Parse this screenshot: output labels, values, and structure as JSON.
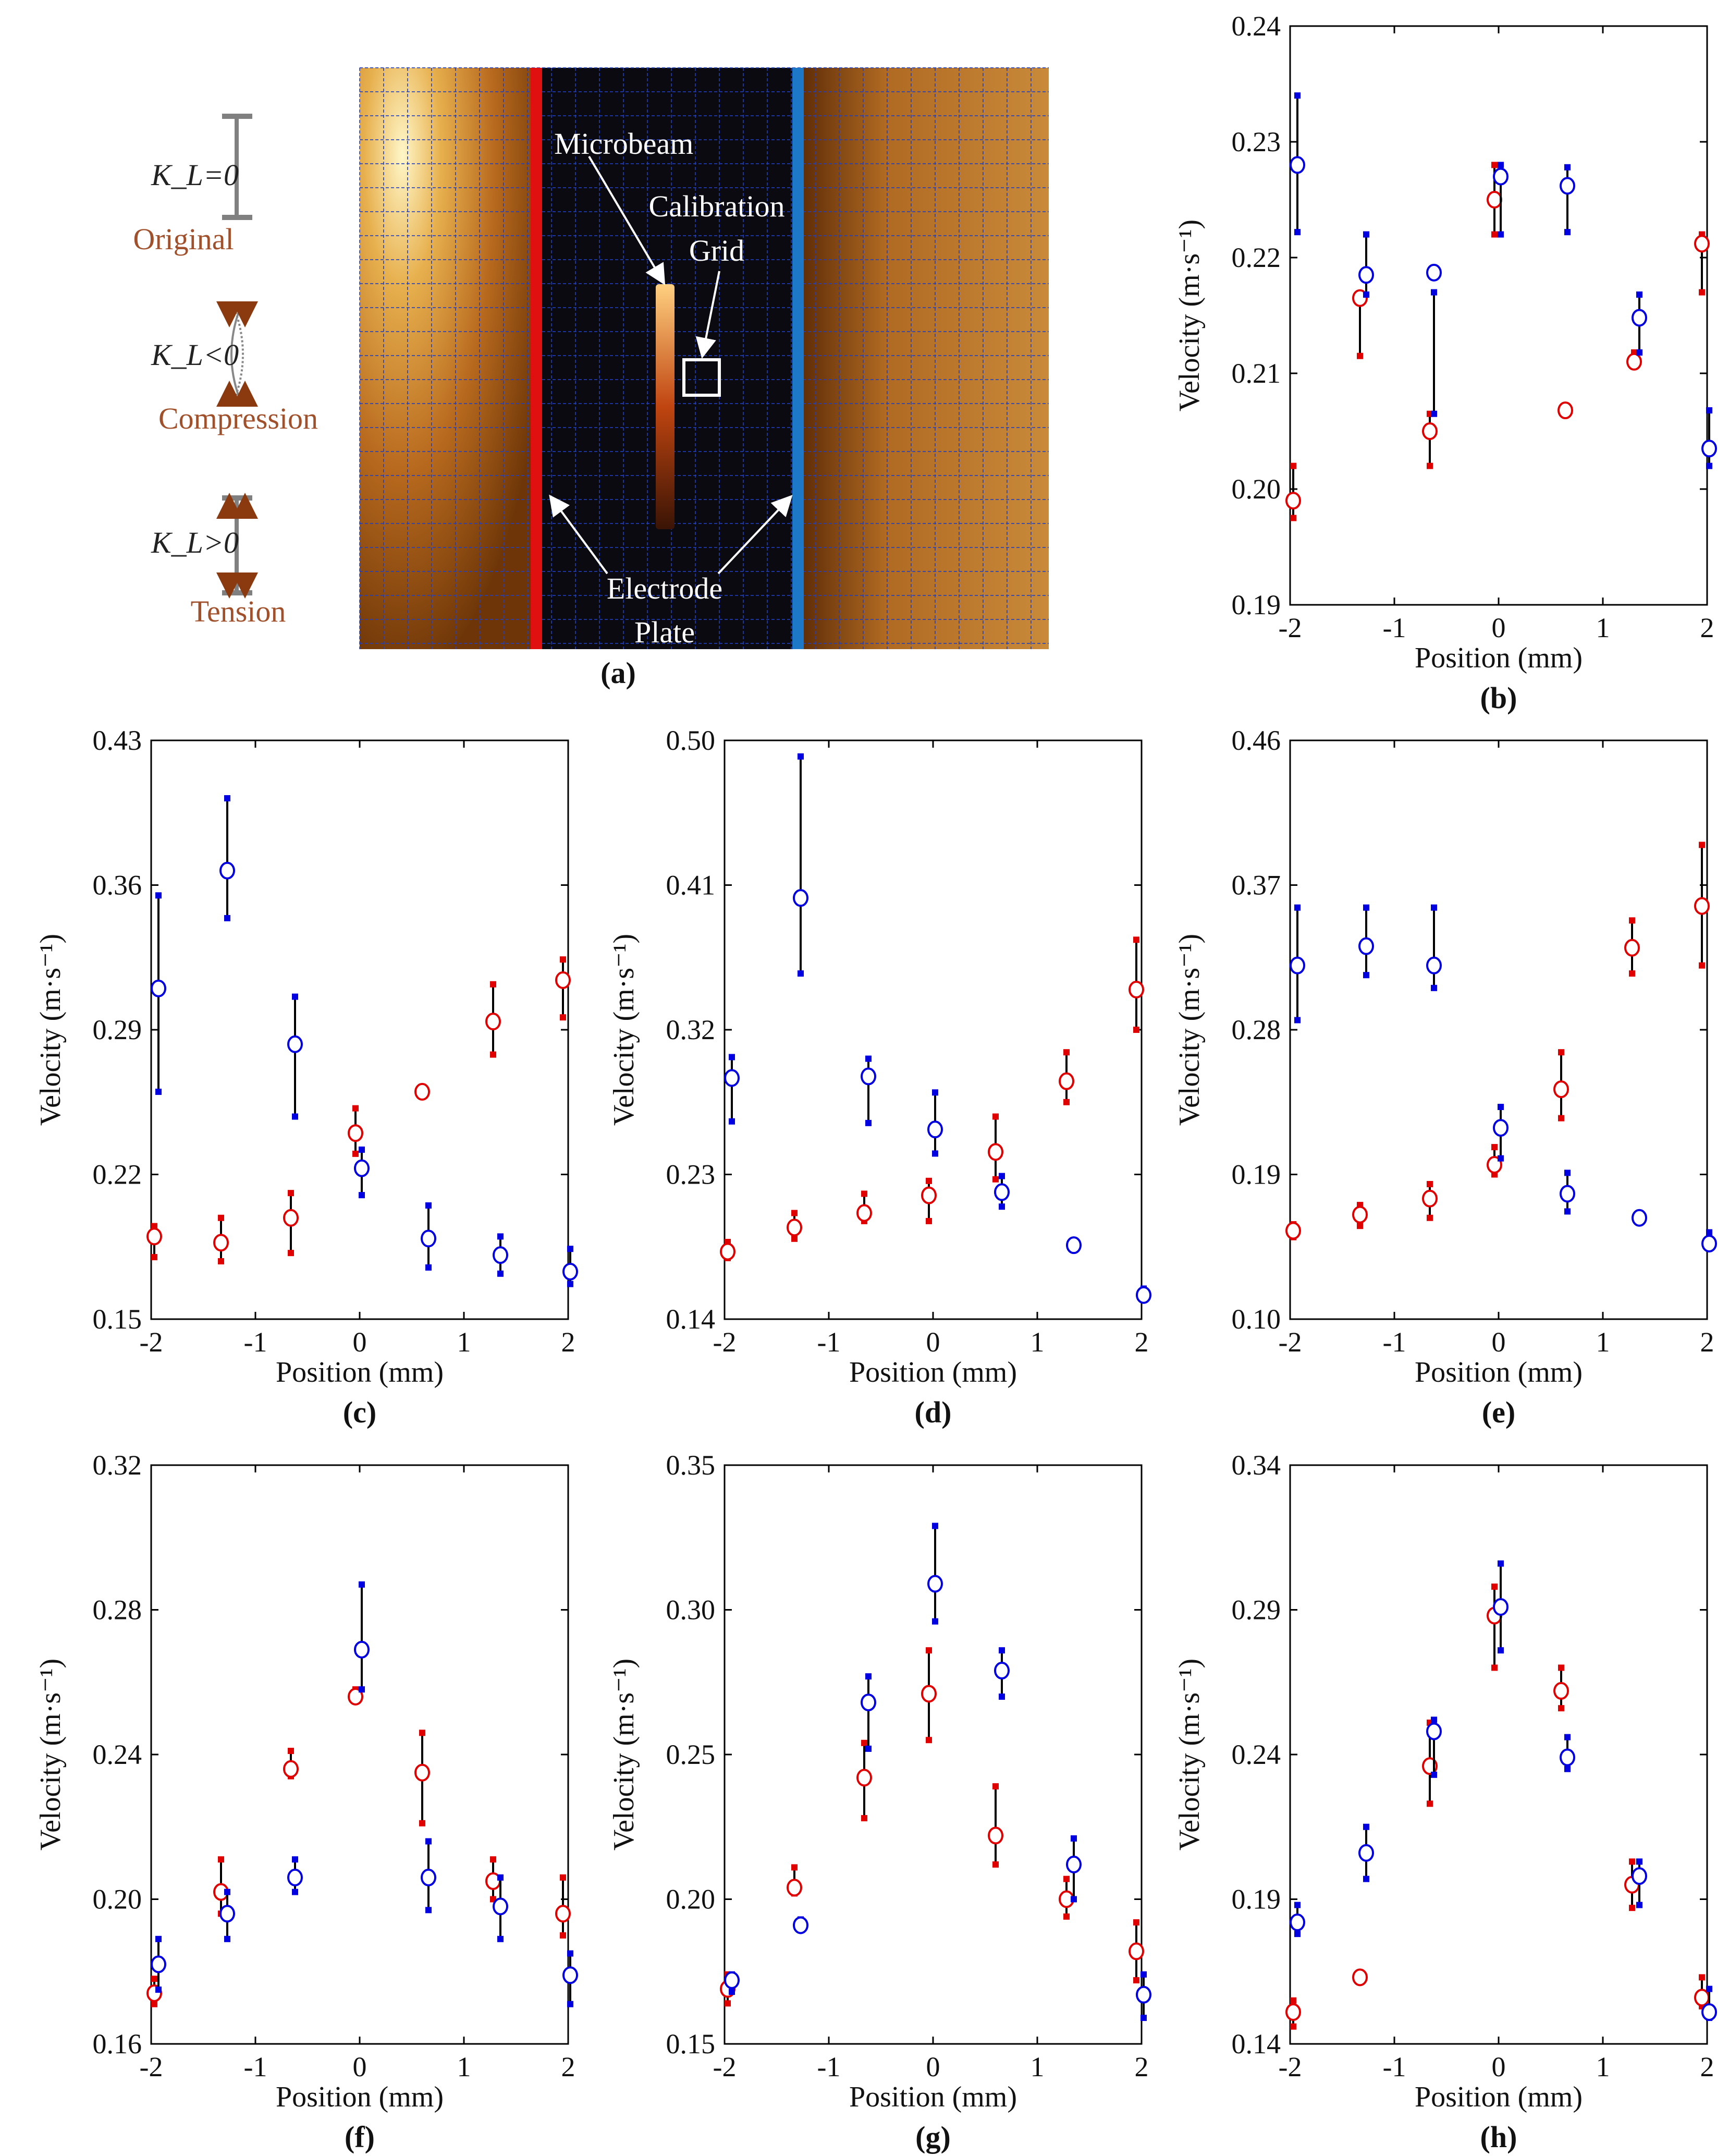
{
  "panel_a": {
    "caption": "(a)",
    "diagram": {
      "rows": [
        {
          "label": "K_L=0",
          "sub": "Original"
        },
        {
          "label": "K_L<0",
          "sub": "Compression"
        },
        {
          "label": "K_L>0",
          "sub": "Tension"
        }
      ]
    },
    "photo_labels": {
      "microbeam": "Microbeam",
      "calibration": "Calibration",
      "grid": "Grid",
      "electrode": "Electrode",
      "plate": "Plate"
    },
    "colors": {
      "left_plate": "#e01010",
      "right_plate": "#1e78c8"
    }
  },
  "chart_data": [
    {
      "panel": "(b)",
      "type": "scatter",
      "xlabel": "Position (mm)",
      "ylabel": "Velocity (m·s⁻¹)",
      "xlim": [
        -2,
        2
      ],
      "ylim": [
        0.19,
        0.24
      ],
      "xticks": [
        "-2",
        "-1",
        "0",
        "1",
        "2"
      ],
      "yticks": [
        "0.19",
        "0.20",
        "0.21",
        "0.22",
        "0.23",
        "0.24"
      ],
      "series": [
        {
          "color": "#e00000",
          "points": [
            {
              "x": -1.97,
              "y": 0.199,
              "lo": 0.1975,
              "hi": 0.202
            },
            {
              "x": -1.33,
              "y": 0.2165,
              "lo": 0.2115,
              "hi": 0.2165
            },
            {
              "x": -0.66,
              "y": 0.205,
              "lo": 0.202,
              "hi": 0.2065
            },
            {
              "x": -0.04,
              "y": 0.225,
              "lo": 0.222,
              "hi": 0.228
            },
            {
              "x": 0.64,
              "y": 0.2068
            },
            {
              "x": 1.3,
              "y": 0.211,
              "lo": 0.211,
              "hi": 0.2118
            },
            {
              "x": 1.95,
              "y": 0.2212,
              "lo": 0.217,
              "hi": 0.222
            }
          ]
        },
        {
          "color": "#0000e0",
          "points": [
            {
              "x": -1.93,
              "y": 0.228,
              "lo": 0.2222,
              "hi": 0.234
            },
            {
              "x": -1.27,
              "y": 0.2185,
              "lo": 0.2168,
              "hi": 0.222
            },
            {
              "x": -0.62,
              "y": 0.2187,
              "lo": 0.2065,
              "hi": 0.217
            },
            {
              "x": 0.02,
              "y": 0.227,
              "lo": 0.222,
              "hi": 0.228
            },
            {
              "x": 0.66,
              "y": 0.2262,
              "lo": 0.2222,
              "hi": 0.2278
            },
            {
              "x": 1.35,
              "y": 0.2148,
              "lo": 0.2118,
              "hi": 0.2168
            },
            {
              "x": 2.02,
              "y": 0.2035,
              "lo": 0.202,
              "hi": 0.2068
            }
          ]
        }
      ]
    },
    {
      "panel": "(c)",
      "type": "scatter",
      "xlabel": "Position (mm)",
      "ylabel": "Velocity (m·s⁻¹)",
      "xlim": [
        -2,
        2
      ],
      "ylim": [
        0.15,
        0.43
      ],
      "xticks": [
        "-2",
        "-1",
        "0",
        "1",
        "2"
      ],
      "yticks": [
        "0.15",
        "0.22",
        "0.29",
        "0.36",
        "0.43"
      ],
      "series": [
        {
          "color": "#e00000",
          "points": [
            {
              "x": -1.97,
              "y": 0.19,
              "lo": 0.18,
              "hi": 0.195
            },
            {
              "x": -1.33,
              "y": 0.187,
              "lo": 0.178,
              "hi": 0.199
            },
            {
              "x": -0.66,
              "y": 0.199,
              "lo": 0.182,
              "hi": 0.211
            },
            {
              "x": -0.04,
              "y": 0.24,
              "lo": 0.23,
              "hi": 0.252
            },
            {
              "x": 0.6,
              "y": 0.26,
              "lo": 0.258,
              "hi": 0.262
            },
            {
              "x": 1.28,
              "y": 0.294,
              "lo": 0.278,
              "hi": 0.312
            },
            {
              "x": 1.95,
              "y": 0.314,
              "lo": 0.296,
              "hi": 0.324
            }
          ]
        },
        {
          "color": "#0000e0",
          "points": [
            {
              "x": -1.93,
              "y": 0.31,
              "lo": 0.26,
              "hi": 0.355
            },
            {
              "x": -1.27,
              "y": 0.367,
              "lo": 0.344,
              "hi": 0.402
            },
            {
              "x": -0.62,
              "y": 0.283,
              "lo": 0.248,
              "hi": 0.306
            },
            {
              "x": 0.02,
              "y": 0.223,
              "lo": 0.21,
              "hi": 0.232
            },
            {
              "x": 0.66,
              "y": 0.189,
              "lo": 0.175,
              "hi": 0.205
            },
            {
              "x": 1.35,
              "y": 0.181,
              "lo": 0.172,
              "hi": 0.19
            },
            {
              "x": 2.02,
              "y": 0.173,
              "lo": 0.167,
              "hi": 0.184
            }
          ]
        }
      ]
    },
    {
      "panel": "(d)",
      "type": "scatter",
      "xlabel": "Position (mm)",
      "ylabel": "Velocity (m·s⁻¹)",
      "xlim": [
        -2,
        2
      ],
      "ylim": [
        0.14,
        0.5
      ],
      "xticks": [
        "-2",
        "-1",
        "0",
        "1",
        "2"
      ],
      "yticks": [
        "0.14",
        "0.23",
        "0.32",
        "0.41",
        "0.50"
      ],
      "series": [
        {
          "color": "#e00000",
          "points": [
            {
              "x": -1.97,
              "y": 0.182,
              "lo": 0.178,
              "hi": 0.188
            },
            {
              "x": -1.33,
              "y": 0.197,
              "lo": 0.19,
              "hi": 0.206
            },
            {
              "x": -0.66,
              "y": 0.206,
              "lo": 0.201,
              "hi": 0.218
            },
            {
              "x": -0.04,
              "y": 0.217,
              "lo": 0.201,
              "hi": 0.226
            },
            {
              "x": 0.6,
              "y": 0.244,
              "lo": 0.227,
              "hi": 0.266
            },
            {
              "x": 1.28,
              "y": 0.288,
              "lo": 0.275,
              "hi": 0.306
            },
            {
              "x": 1.95,
              "y": 0.345,
              "lo": 0.32,
              "hi": 0.376
            }
          ]
        },
        {
          "color": "#0000e0",
          "points": [
            {
              "x": -1.93,
              "y": 0.29,
              "lo": 0.263,
              "hi": 0.303
            },
            {
              "x": -1.27,
              "y": 0.402,
              "lo": 0.355,
              "hi": 0.49
            },
            {
              "x": -0.62,
              "y": 0.291,
              "lo": 0.262,
              "hi": 0.302
            },
            {
              "x": 0.02,
              "y": 0.258,
              "lo": 0.243,
              "hi": 0.281
            },
            {
              "x": 0.66,
              "y": 0.219,
              "lo": 0.21,
              "hi": 0.229
            },
            {
              "x": 1.35,
              "y": 0.186
            },
            {
              "x": 2.02,
              "y": 0.155,
              "lo": 0.153,
              "hi": 0.159
            }
          ]
        }
      ]
    },
    {
      "panel": "(e)",
      "type": "scatter",
      "xlabel": "Position (mm)",
      "ylabel": "Velocity (m·s⁻¹)",
      "xlim": [
        -2,
        2
      ],
      "ylim": [
        0.1,
        0.46
      ],
      "xticks": [
        "-2",
        "-1",
        "0",
        "1",
        "2"
      ],
      "yticks": [
        "0.10",
        "0.19",
        "0.28",
        "0.37",
        "0.46"
      ],
      "series": [
        {
          "color": "#e00000",
          "points": [
            {
              "x": -1.97,
              "y": 0.155,
              "lo": 0.151,
              "hi": 0.159
            },
            {
              "x": -1.33,
              "y": 0.165,
              "lo": 0.158,
              "hi": 0.171
            },
            {
              "x": -0.66,
              "y": 0.175,
              "lo": 0.163,
              "hi": 0.184
            },
            {
              "x": -0.04,
              "y": 0.196,
              "lo": 0.19,
              "hi": 0.207
            },
            {
              "x": 0.6,
              "y": 0.243,
              "lo": 0.225,
              "hi": 0.266
            },
            {
              "x": 1.28,
              "y": 0.331,
              "lo": 0.315,
              "hi": 0.348
            },
            {
              "x": 1.95,
              "y": 0.357,
              "lo": 0.32,
              "hi": 0.395
            }
          ]
        },
        {
          "color": "#0000e0",
          "points": [
            {
              "x": -1.93,
              "y": 0.32,
              "lo": 0.286,
              "hi": 0.356
            },
            {
              "x": -1.27,
              "y": 0.332,
              "lo": 0.314,
              "hi": 0.356
            },
            {
              "x": -0.62,
              "y": 0.32,
              "lo": 0.306,
              "hi": 0.356
            },
            {
              "x": 0.02,
              "y": 0.219,
              "lo": 0.2,
              "hi": 0.232
            },
            {
              "x": 0.66,
              "y": 0.178,
              "lo": 0.167,
              "hi": 0.191
            },
            {
              "x": 1.35,
              "y": 0.163
            },
            {
              "x": 2.02,
              "y": 0.147,
              "lo": 0.145,
              "hi": 0.154
            }
          ]
        }
      ]
    },
    {
      "panel": "(f)",
      "type": "scatter",
      "xlabel": "Position (mm)",
      "ylabel": "Velocity (m·s⁻¹)",
      "xlim": [
        -2,
        2
      ],
      "ylim": [
        0.16,
        0.32
      ],
      "xticks": [
        "-2",
        "-1",
        "0",
        "1",
        "2"
      ],
      "yticks": [
        "0.16",
        "0.20",
        "0.24",
        "0.28",
        "0.32"
      ],
      "series": [
        {
          "color": "#e00000",
          "points": [
            {
              "x": -1.97,
              "y": 0.174,
              "lo": 0.171,
              "hi": 0.178
            },
            {
              "x": -1.33,
              "y": 0.202,
              "lo": 0.196,
              "hi": 0.211
            },
            {
              "x": -0.66,
              "y": 0.236,
              "lo": 0.234,
              "hi": 0.241
            },
            {
              "x": -0.04,
              "y": 0.256,
              "lo": 0.255,
              "hi": 0.258
            },
            {
              "x": 0.6,
              "y": 0.235,
              "lo": 0.221,
              "hi": 0.246
            },
            {
              "x": 1.28,
              "y": 0.205,
              "lo": 0.2,
              "hi": 0.211
            },
            {
              "x": 1.95,
              "y": 0.196,
              "lo": 0.19,
              "hi": 0.206
            }
          ]
        },
        {
          "color": "#0000e0",
          "points": [
            {
              "x": -1.93,
              "y": 0.182,
              "lo": 0.175,
              "hi": 0.189
            },
            {
              "x": -1.27,
              "y": 0.196,
              "lo": 0.189,
              "hi": 0.202
            },
            {
              "x": -0.62,
              "y": 0.206,
              "lo": 0.202,
              "hi": 0.211
            },
            {
              "x": 0.02,
              "y": 0.269,
              "lo": 0.258,
              "hi": 0.287
            },
            {
              "x": 0.66,
              "y": 0.206,
              "lo": 0.197,
              "hi": 0.216
            },
            {
              "x": 1.35,
              "y": 0.198,
              "lo": 0.189,
              "hi": 0.206
            },
            {
              "x": 2.02,
              "y": 0.179,
              "lo": 0.171,
              "hi": 0.185
            }
          ]
        }
      ]
    },
    {
      "panel": "(g)",
      "type": "scatter",
      "xlabel": "Position (mm)",
      "ylabel": "Velocity (m·s⁻¹)",
      "xlim": [
        -2,
        2
      ],
      "ylim": [
        0.15,
        0.35
      ],
      "xticks": [
        "-2",
        "-1",
        "0",
        "1",
        "2"
      ],
      "yticks": [
        "0.15",
        "0.20",
        "0.25",
        "0.30",
        "0.35"
      ],
      "series": [
        {
          "color": "#e00000",
          "points": [
            {
              "x": -1.97,
              "y": 0.169,
              "lo": 0.164,
              "hi": 0.174
            },
            {
              "x": -1.33,
              "y": 0.204,
              "lo": 0.202,
              "hi": 0.211
            },
            {
              "x": -0.66,
              "y": 0.242,
              "lo": 0.228,
              "hi": 0.254
            },
            {
              "x": -0.04,
              "y": 0.271,
              "lo": 0.255,
              "hi": 0.286
            },
            {
              "x": 0.6,
              "y": 0.222,
              "lo": 0.212,
              "hi": 0.239
            },
            {
              "x": 1.28,
              "y": 0.2,
              "lo": 0.194,
              "hi": 0.207
            },
            {
              "x": 1.95,
              "y": 0.182,
              "lo": 0.172,
              "hi": 0.192
            }
          ]
        },
        {
          "color": "#0000e0",
          "points": [
            {
              "x": -1.93,
              "y": 0.172,
              "lo": 0.168,
              "hi": 0.174
            },
            {
              "x": -1.27,
              "y": 0.191,
              "lo": 0.19,
              "hi": 0.193
            },
            {
              "x": -0.62,
              "y": 0.268,
              "lo": 0.252,
              "hi": 0.277
            },
            {
              "x": 0.02,
              "y": 0.309,
              "lo": 0.296,
              "hi": 0.329
            },
            {
              "x": 0.66,
              "y": 0.279,
              "lo": 0.27,
              "hi": 0.286
            },
            {
              "x": 1.35,
              "y": 0.212,
              "lo": 0.2,
              "hi": 0.221
            },
            {
              "x": 2.02,
              "y": 0.167,
              "lo": 0.159,
              "hi": 0.174
            }
          ]
        }
      ]
    },
    {
      "panel": "(h)",
      "type": "scatter",
      "xlabel": "Position (mm)",
      "ylabel": "Velocity (m·s⁻¹)",
      "xlim": [
        -2,
        2
      ],
      "ylim": [
        0.14,
        0.34
      ],
      "xticks": [
        "-2",
        "-1",
        "0",
        "1",
        "2"
      ],
      "yticks": [
        "0.14",
        "0.19",
        "0.24",
        "0.29",
        "0.34"
      ],
      "series": [
        {
          "color": "#e00000",
          "points": [
            {
              "x": -1.97,
              "y": 0.151,
              "lo": 0.146,
              "hi": 0.155
            },
            {
              "x": -1.33,
              "y": 0.163
            },
            {
              "x": -0.66,
              "y": 0.236,
              "lo": 0.223,
              "hi": 0.251
            },
            {
              "x": -0.04,
              "y": 0.288,
              "lo": 0.27,
              "hi": 0.298
            },
            {
              "x": 0.6,
              "y": 0.262,
              "lo": 0.256,
              "hi": 0.27
            },
            {
              "x": 1.28,
              "y": 0.195,
              "lo": 0.187,
              "hi": 0.203
            },
            {
              "x": 1.95,
              "y": 0.156,
              "lo": 0.153,
              "hi": 0.163
            }
          ]
        },
        {
          "color": "#0000e0",
          "points": [
            {
              "x": -1.93,
              "y": 0.182,
              "lo": 0.178,
              "hi": 0.188
            },
            {
              "x": -1.27,
              "y": 0.206,
              "lo": 0.197,
              "hi": 0.215
            },
            {
              "x": -0.62,
              "y": 0.248,
              "lo": 0.233,
              "hi": 0.252
            },
            {
              "x": 0.02,
              "y": 0.291,
              "lo": 0.276,
              "hi": 0.306
            },
            {
              "x": 0.66,
              "y": 0.239,
              "lo": 0.235,
              "hi": 0.246
            },
            {
              "x": 1.35,
              "y": 0.198,
              "lo": 0.188,
              "hi": 0.203
            },
            {
              "x": 2.02,
              "y": 0.151,
              "lo": 0.149,
              "hi": 0.159
            }
          ]
        }
      ]
    }
  ]
}
